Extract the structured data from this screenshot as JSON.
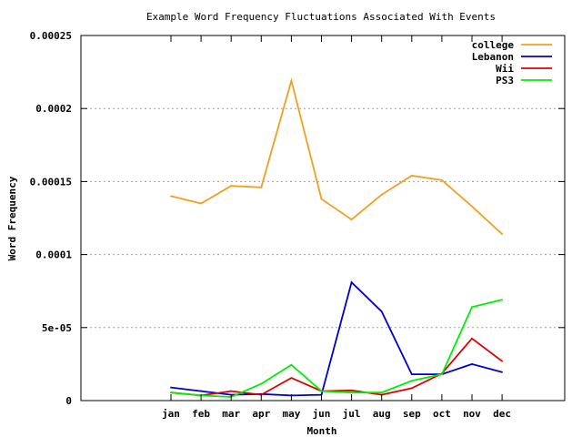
{
  "chart_data": {
    "type": "line",
    "title": "Example Word Frequency Fluctuations Associated With Events",
    "xlabel": "Month",
    "ylabel": "Word Frequency",
    "categories": [
      "jan",
      "feb",
      "mar",
      "apr",
      "may",
      "jun",
      "jul",
      "aug",
      "sep",
      "oct",
      "nov",
      "dec"
    ],
    "ylim": [
      0,
      0.00025
    ],
    "yticks": [
      0,
      5e-05,
      0.0001,
      0.00015,
      0.0002,
      0.00025
    ],
    "ytick_labels": [
      "0",
      "5e-05",
      "0.0001",
      "0.00015",
      "0.0002",
      "0.00025"
    ],
    "grid": "horizontal dotted",
    "legend_position": "top-right",
    "series": [
      {
        "name": "college",
        "color": "#f0a020",
        "values": [
          0.00014,
          0.000135,
          0.000147,
          0.000146,
          0.000219,
          0.000138,
          0.000124,
          0.000141,
          0.000154,
          0.000151,
          0.000133,
          0.000114
        ]
      },
      {
        "name": "Lebanon",
        "color": "#0000cc",
        "values": [
          9e-06,
          6.5e-06,
          4e-06,
          4.5e-06,
          3.5e-06,
          4e-06,
          8.1e-05,
          6.1e-05,
          1.8e-05,
          1.8e-05,
          2.5e-05,
          1.95e-05
        ]
      },
      {
        "name": "Wii",
        "color": "#dd0000",
        "values": [
          5.5e-06,
          3.5e-06,
          6.5e-06,
          4e-06,
          1.55e-05,
          6.5e-06,
          7e-06,
          4e-06,
          8.5e-06,
          1.85e-05,
          4.25e-05,
          2.7e-05
        ]
      },
      {
        "name": "PS3",
        "color": "#00ee00",
        "values": [
          5.5e-06,
          3.5e-06,
          2.5e-06,
          1.15e-05,
          2.45e-05,
          6.5e-06,
          5.5e-06,
          5.5e-06,
          1.35e-05,
          1.8e-05,
          6.4e-05,
          6.9e-05
        ]
      }
    ]
  }
}
